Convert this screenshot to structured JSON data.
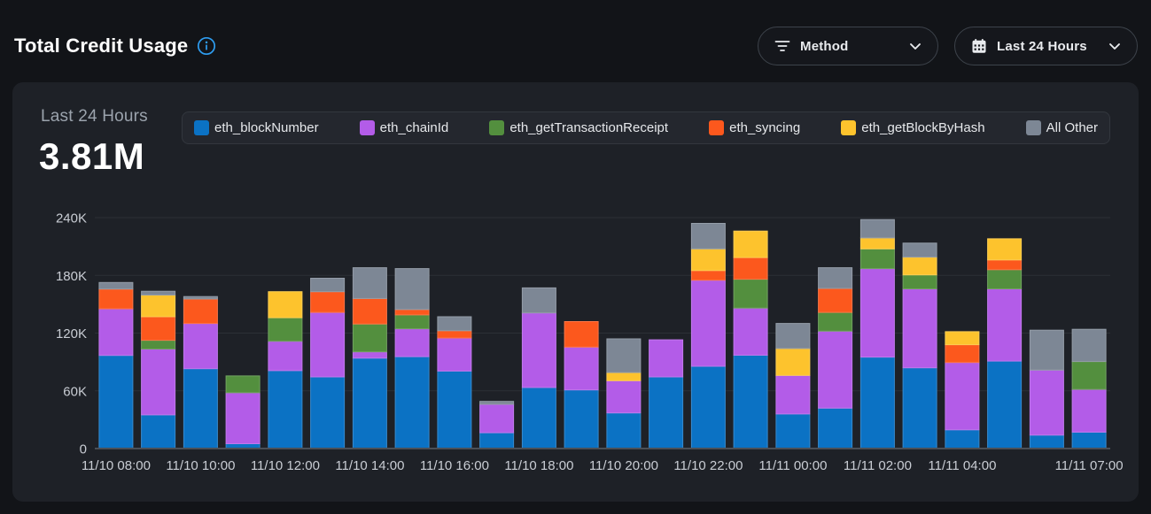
{
  "header": {
    "title": "Total Credit Usage",
    "info_icon": "info-circle",
    "method_filter": {
      "label": "Method",
      "icon": "filter-lines",
      "chevron": "chevron-down"
    },
    "time_range_filter": {
      "label": "Last 24 Hours",
      "icon": "calendar",
      "chevron": "chevron-down"
    }
  },
  "panel": {
    "period_label": "Last 24 Hours",
    "total": "3.81M"
  },
  "colors": {
    "page_bg": "#121418",
    "panel_bg": "#1e2127",
    "legend_bg": "#24272e",
    "accent_blue": "#2e9df0",
    "grid_line": "#2c3036",
    "axis_line": "#4a4f57",
    "axis_text": "#c9cdd4"
  },
  "chart_data": {
    "type": "bar",
    "variant": "stacked",
    "title": "Total Credit Usage",
    "subtitle": "Last 24 Hours",
    "total_label": "3.81M",
    "values_unit": "thousands of credits (K)",
    "ylim": [
      0,
      240
    ],
    "y_ticks": [
      {
        "label": "0",
        "value": 0
      },
      {
        "label": "60K",
        "value": 60
      },
      {
        "label": "120K",
        "value": 120
      },
      {
        "label": "180K",
        "value": 180
      },
      {
        "label": "240K",
        "value": 240
      }
    ],
    "legend_position": "top",
    "grid": true,
    "categories": [
      "11/10 08:00",
      "11/10 09:00",
      "11/10 10:00",
      "11/10 11:00",
      "11/10 12:00",
      "11/10 13:00",
      "11/10 14:00",
      "11/10 15:00",
      "11/10 16:00",
      "11/10 17:00",
      "11/10 18:00",
      "11/10 19:00",
      "11/10 20:00",
      "11/10 21:00",
      "11/10 22:00",
      "11/10 23:00",
      "11/11 00:00",
      "11/11 01:00",
      "11/11 02:00",
      "11/11 03:00",
      "11/11 04:00",
      "11/11 05:00",
      "11/11 06:00",
      "11/11 07:00"
    ],
    "x_tick_indices": [
      0,
      2,
      4,
      6,
      8,
      10,
      12,
      14,
      16,
      18,
      20,
      23
    ],
    "series": [
      {
        "name": "eth_blockNumber",
        "color": "#0b72c4",
        "values": [
          96.8,
          35,
          83,
          5,
          81,
          74.5,
          94,
          95.5,
          80.5,
          16.5,
          63.5,
          61,
          37,
          74.5,
          85.5,
          97,
          36,
          42,
          95,
          84,
          19.5,
          91,
          14,
          17
        ]
      },
      {
        "name": "eth_chainId",
        "color": "#b35ce8",
        "values": [
          48.5,
          68.5,
          47,
          53,
          30.5,
          67,
          6.5,
          29,
          34.5,
          29.5,
          77.5,
          44.5,
          33.5,
          38.5,
          89.5,
          49,
          40,
          80,
          92,
          82,
          70,
          75,
          67.5,
          44.5
        ]
      },
      {
        "name": "eth_getTransactionReceipt",
        "color": "#538f3e",
        "values": [
          0,
          9,
          0,
          17.5,
          24.5,
          0,
          29,
          14.5,
          0,
          0,
          0,
          0,
          0,
          0,
          0,
          30,
          0,
          19.5,
          20.5,
          14.5,
          0,
          20,
          0,
          29
        ]
      },
      {
        "name": "eth_syncing",
        "color": "#fc581d",
        "values": [
          20.5,
          24.5,
          25.5,
          0,
          0,
          21.5,
          26.5,
          5.5,
          7.5,
          0,
          0,
          26.5,
          0,
          0,
          10,
          22.5,
          0,
          25,
          0,
          0,
          18.5,
          10,
          0,
          0
        ]
      },
      {
        "name": "eth_getBlockByHash",
        "color": "#fdc32d",
        "values": [
          0,
          22.5,
          0,
          0,
          27,
          0,
          0,
          0,
          0,
          0,
          0,
          0,
          8.5,
          0,
          22.5,
          27.5,
          28,
          0,
          11.5,
          18.5,
          13.5,
          22,
          0,
          0
        ]
      },
      {
        "name": "All Other",
        "color": "#7d8795",
        "values": [
          6.8,
          4,
          2.5,
          0,
          0,
          14,
          32,
          42.5,
          14.5,
          3,
          26,
          0,
          35,
          0,
          26.5,
          0,
          26,
          21.5,
          19,
          14.5,
          0,
          0,
          41.5,
          33.5
        ]
      }
    ]
  }
}
